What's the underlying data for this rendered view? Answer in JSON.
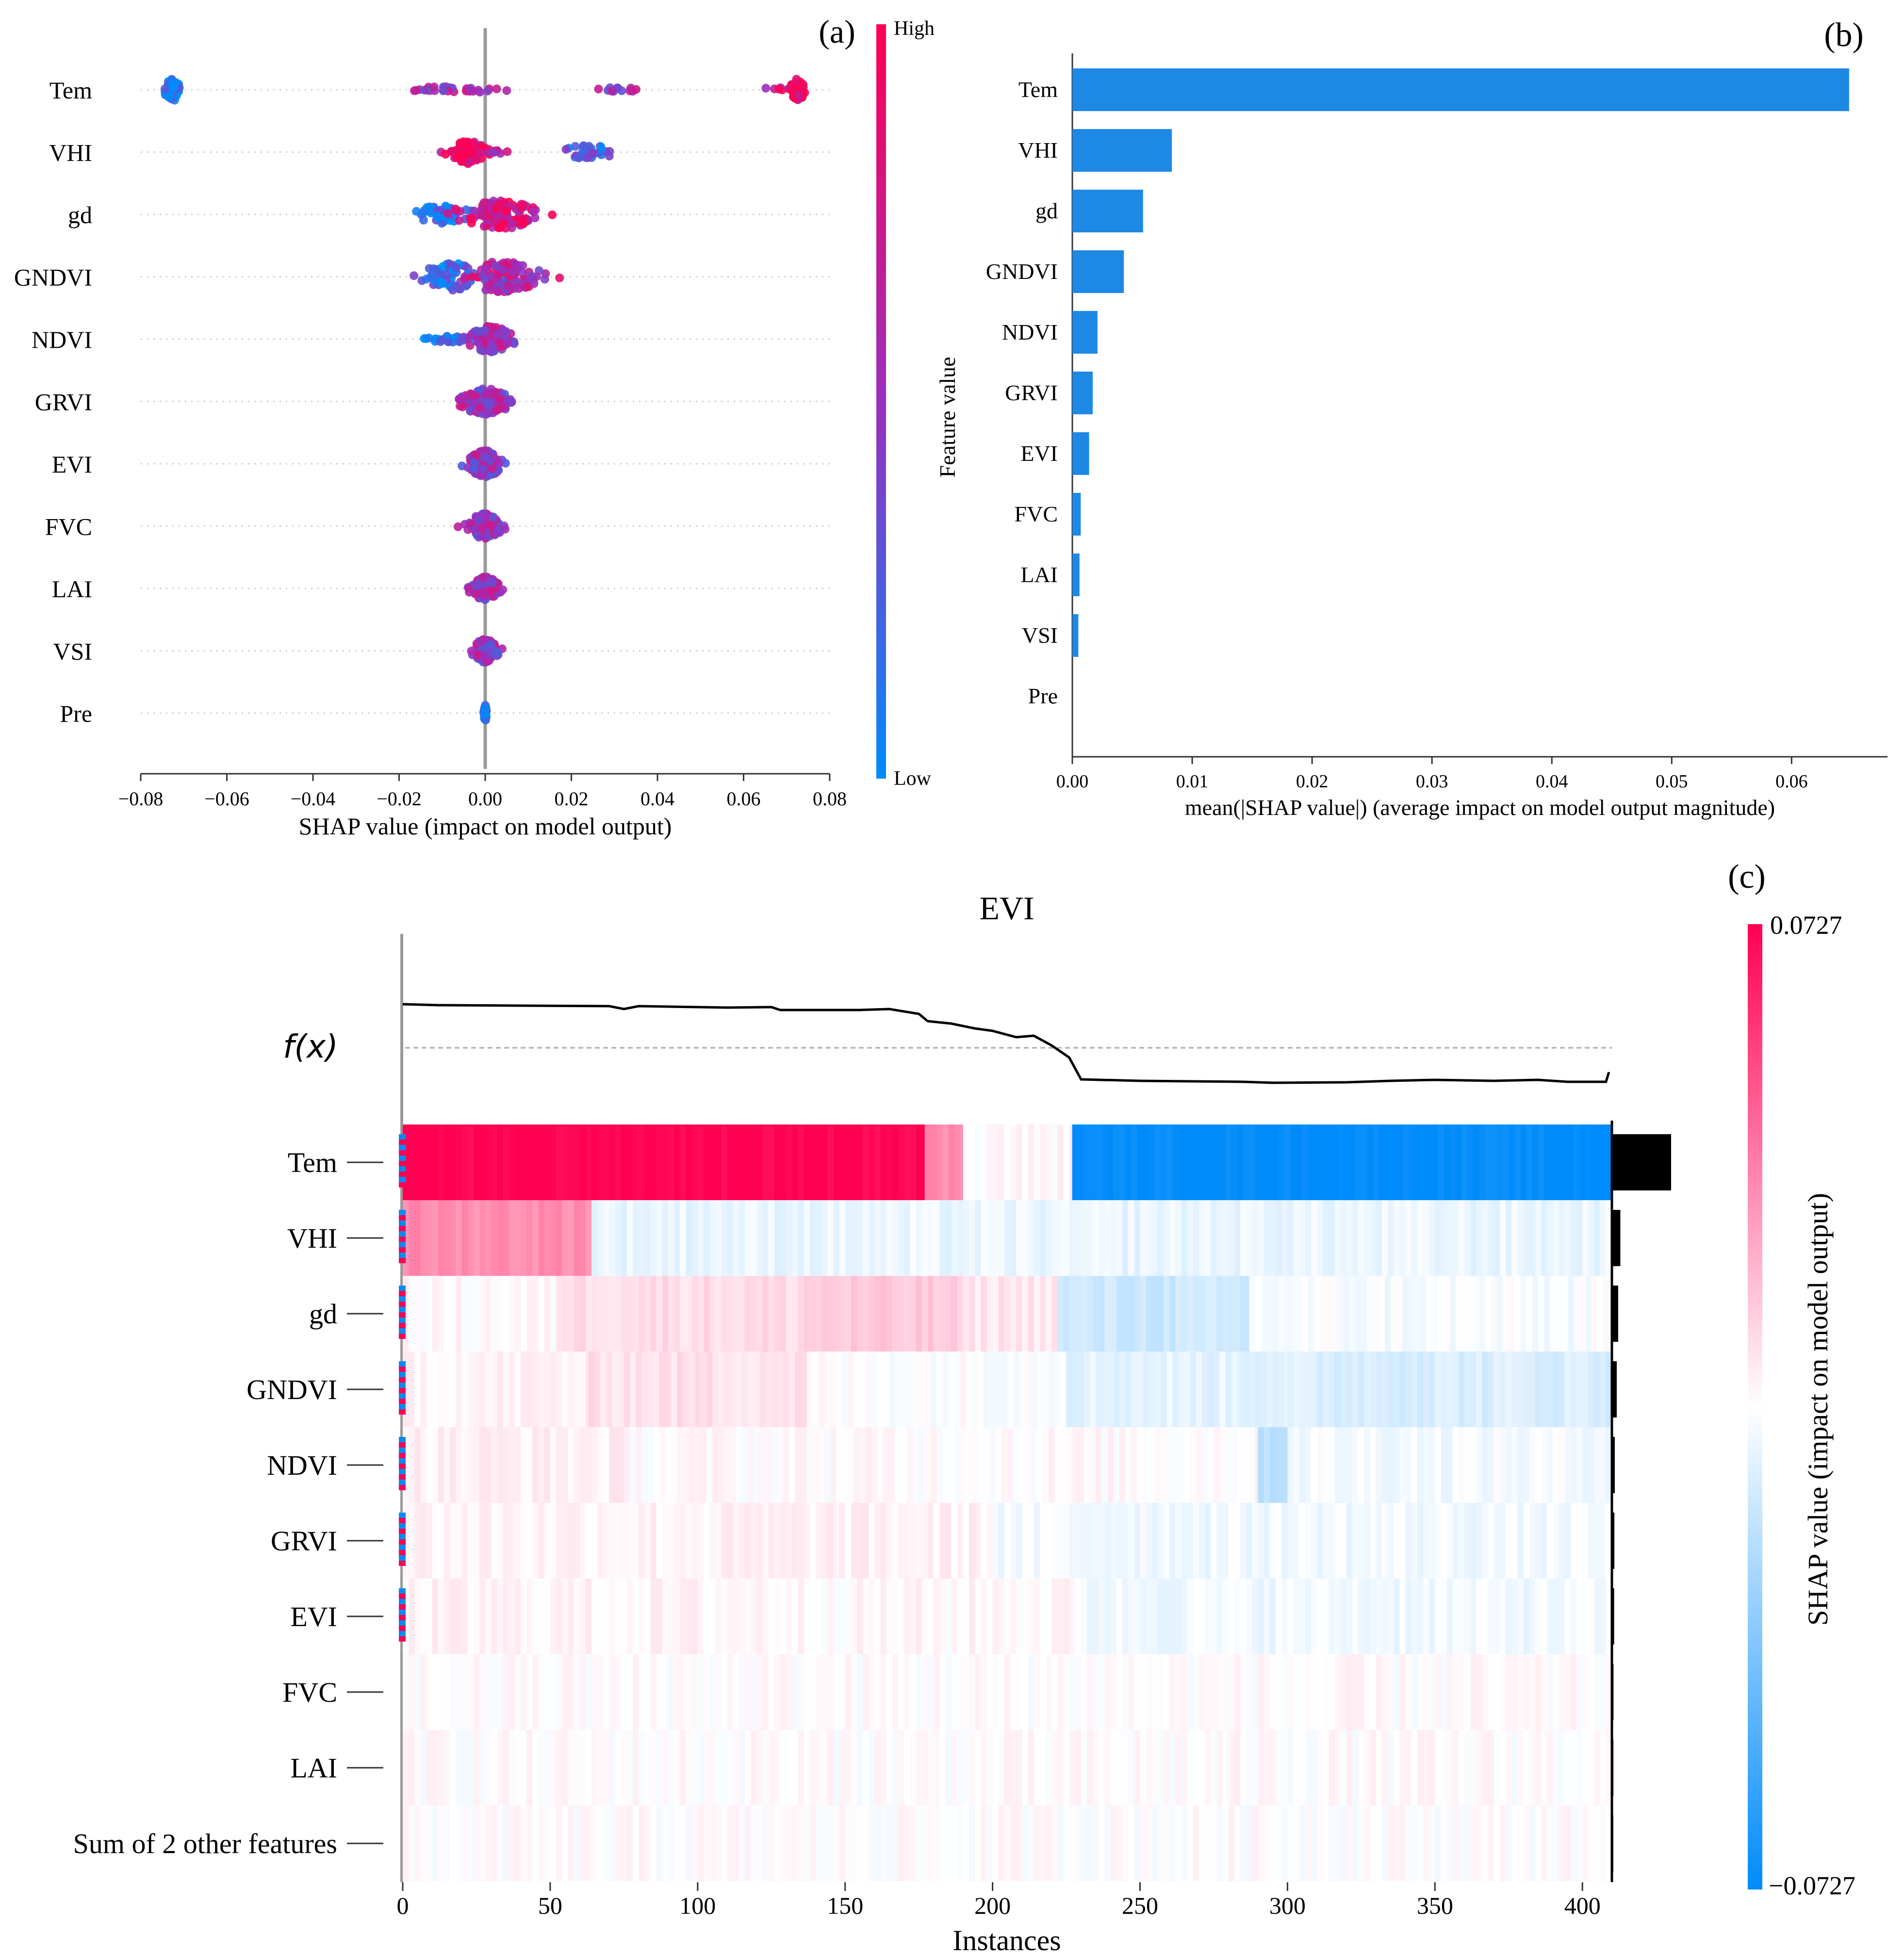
{
  "panels": {
    "a": {
      "panel_label": "(a)",
      "colorbar": {
        "high_label": "High",
        "low_label": "Low"
      }
    },
    "b": {
      "panel_label": "(b)"
    },
    "c": {
      "panel_label": "(c)",
      "fx_label": "f(x)"
    }
  },
  "colors": {
    "shap_red": "#ff0052",
    "shap_blue": "#008bfb",
    "shap_purple": "#9a2fbe",
    "bar_blue": "#1e88e5",
    "importance_bar": "#000000"
  },
  "chart_data": [
    {
      "id": "a",
      "type": "scatter",
      "subtype": "shap_beeswarm",
      "xlabel": "SHAP value (impact on model output)",
      "ylabel": "",
      "xlim": [
        -0.08,
        0.08
      ],
      "xticks": [
        -0.08,
        -0.06,
        -0.04,
        -0.02,
        0.0,
        0.02,
        0.04,
        0.06,
        0.08
      ],
      "xtick_labels": [
        "−0.08",
        "−0.06",
        "−0.04",
        "−0.02",
        "0.00",
        "0.02",
        "0.04",
        "0.06",
        "0.08"
      ],
      "features": [
        "Tem",
        "VHI",
        "gd",
        "GNDVI",
        "NDVI",
        "GRVI",
        "EVI",
        "FVC",
        "LAI",
        "VSI",
        "Pre"
      ],
      "colorbar": {
        "high": "High",
        "low": "Low"
      },
      "distributions": [
        {
          "feature": "Tem",
          "clusters": [
            {
              "center": -0.0725,
              "spread": 0.0015,
              "n": 55,
              "hue": 0.03,
              "height": 0.7
            },
            {
              "center": -0.009,
              "spread": 0.011,
              "n": 30,
              "hue": 0.55,
              "height": 0.2
            },
            {
              "center": 0.031,
              "spread": 0.0045,
              "n": 12,
              "hue": 0.55,
              "height": 0.15
            },
            {
              "center": 0.068,
              "spread": 0.004,
              "n": 6,
              "hue": 0.75,
              "height": 0.15
            },
            {
              "center": 0.0725,
              "spread": 0.0015,
              "n": 55,
              "hue": 0.97,
              "height": 0.7
            }
          ]
        },
        {
          "feature": "VHI",
          "clusters": [
            {
              "center": -0.004,
              "spread": 0.003,
              "n": 95,
              "hue": 0.92,
              "height": 0.75
            },
            {
              "center": 0.003,
              "spread": 0.002,
              "n": 8,
              "hue": 0.6,
              "height": 0.1
            },
            {
              "center": 0.024,
              "spread": 0.005,
              "n": 28,
              "hue": 0.25,
              "height": 0.45
            }
          ]
        },
        {
          "feature": "gd",
          "clusters": [
            {
              "center": -0.01,
              "spread": 0.005,
              "n": 45,
              "hue": 0.08,
              "height": 0.6
            },
            {
              "center": 0.004,
              "spread": 0.008,
              "n": 120,
              "hue": 0.8,
              "height": 0.9
            }
          ]
        },
        {
          "feature": "GNDVI",
          "clusters": [
            {
              "center": -0.008,
              "spread": 0.005,
              "n": 60,
              "hue": 0.2,
              "height": 0.9
            },
            {
              "center": 0.004,
              "spread": 0.007,
              "n": 110,
              "hue": 0.6,
              "height": 1.0
            }
          ]
        },
        {
          "feature": "NDVI",
          "clusters": [
            {
              "center": -0.008,
              "spread": 0.006,
              "n": 25,
              "hue": 0.05,
              "height": 0.2
            },
            {
              "center": 0.001,
              "spread": 0.004,
              "n": 130,
              "hue": 0.55,
              "height": 0.85
            }
          ]
        },
        {
          "feature": "GRVI",
          "clusters": [
            {
              "center": 0.0,
              "spread": 0.0045,
              "n": 150,
              "hue": 0.5,
              "height": 0.85
            }
          ]
        },
        {
          "feature": "EVI",
          "clusters": [
            {
              "center": 0.0,
              "spread": 0.003,
              "n": 140,
              "hue": 0.5,
              "height": 0.85
            }
          ]
        },
        {
          "feature": "FVC",
          "clusters": [
            {
              "center": 0.0,
              "spread": 0.0028,
              "n": 110,
              "hue": 0.5,
              "height": 0.85
            }
          ]
        },
        {
          "feature": "LAI",
          "clusters": [
            {
              "center": 0.0,
              "spread": 0.0025,
              "n": 110,
              "hue": 0.5,
              "height": 0.75
            }
          ]
        },
        {
          "feature": "VSI",
          "clusters": [
            {
              "center": 0.0,
              "spread": 0.0022,
              "n": 105,
              "hue": 0.5,
              "height": 0.75
            }
          ]
        },
        {
          "feature": "Pre",
          "clusters": [
            {
              "center": 0.0,
              "spread": 0.0002,
              "n": 65,
              "hue": 0.1,
              "height": 0.55
            }
          ]
        }
      ]
    },
    {
      "id": "b",
      "type": "bar",
      "orientation": "horizontal",
      "xlabel": "mean(|SHAP value|) (average impact on model output magnitude)",
      "ylabel": "Feature value",
      "xlim": [
        0,
        0.068
      ],
      "xticks": [
        0.0,
        0.01,
        0.02,
        0.03,
        0.04,
        0.05,
        0.06
      ],
      "xtick_labels": [
        "0.00",
        "0.01",
        "0.02",
        "0.03",
        "0.04",
        "0.05",
        "0.06"
      ],
      "categories": [
        "Tem",
        "VHI",
        "gd",
        "GNDVI",
        "NDVI",
        "GRVI",
        "EVI",
        "FVC",
        "LAI",
        "VSI",
        "Pre"
      ],
      "values": [
        0.0648,
        0.0083,
        0.0059,
        0.0043,
        0.0021,
        0.0017,
        0.0014,
        0.0007,
        0.0006,
        0.0005,
        0.0
      ]
    },
    {
      "id": "c",
      "type": "heatmap",
      "subtype": "shap_heatmap",
      "title": "EVI",
      "xlabel": "Instances",
      "ylabel": "SHAP value (impact on model output)",
      "xlim": [
        0,
        410
      ],
      "xticks": [
        0,
        50,
        100,
        150,
        200,
        250,
        300,
        350,
        400
      ],
      "xtick_labels": [
        "0",
        "50",
        "100",
        "150",
        "200",
        "250",
        "300",
        "350",
        "400"
      ],
      "n_instances": 410,
      "rows": [
        "Tem",
        "VHI",
        "gd",
        "GNDVI",
        "NDVI",
        "GRVI",
        "EVI",
        "FVC",
        "LAI",
        "Sum of 2 other features"
      ],
      "colorbar": {
        "max_label": "0.0727",
        "min_label": "−0.0727",
        "max": 0.0727,
        "min": -0.0727
      },
      "row_segments": [
        [
          [
            0,
            177,
            1.0
          ],
          [
            177,
            190,
            0.45
          ],
          [
            190,
            227,
            0.03
          ],
          [
            227,
            410,
            -1.0
          ]
        ],
        [
          [
            0,
            64,
            0.45
          ],
          [
            64,
            410,
            -0.08
          ]
        ],
        [
          [
            0,
            52,
            0.02
          ],
          [
            52,
            136,
            0.14
          ],
          [
            136,
            188,
            0.2
          ],
          [
            188,
            222,
            0.1
          ],
          [
            222,
            287,
            -0.2
          ],
          [
            287,
            410,
            -0.03
          ]
        ],
        [
          [
            0,
            63,
            0.05
          ],
          [
            63,
            137,
            0.12
          ],
          [
            137,
            225,
            0.0
          ],
          [
            225,
            300,
            -0.1
          ],
          [
            300,
            410,
            -0.14
          ]
        ],
        [
          [
            0,
            75,
            0.06
          ],
          [
            75,
            290,
            0.02
          ],
          [
            290,
            300,
            -0.25
          ],
          [
            300,
            410,
            -0.04
          ]
        ],
        [
          [
            0,
            200,
            0.05
          ],
          [
            200,
            410,
            -0.05
          ]
        ],
        [
          [
            0,
            130,
            0.04
          ],
          [
            130,
            230,
            0.03
          ],
          [
            230,
            410,
            -0.05
          ]
        ],
        [
          [
            0,
            410,
            0.01
          ]
        ],
        [
          [
            0,
            410,
            0.01
          ]
        ],
        [
          [
            0,
            410,
            0.005
          ]
        ]
      ],
      "row_importance": [
        0.0648,
        0.0083,
        0.0059,
        0.0043,
        0.0021,
        0.0017,
        0.0014,
        0.0007,
        0.0006,
        0.0005
      ],
      "fx": {
        "baseline": 0.0,
        "points": [
          [
            0,
            0.9
          ],
          [
            12,
            0.88
          ],
          [
            40,
            0.87
          ],
          [
            70,
            0.86
          ],
          [
            75,
            0.8
          ],
          [
            80,
            0.86
          ],
          [
            110,
            0.83
          ],
          [
            125,
            0.84
          ],
          [
            128,
            0.78
          ],
          [
            155,
            0.78
          ],
          [
            165,
            0.8
          ],
          [
            175,
            0.7
          ],
          [
            178,
            0.55
          ],
          [
            186,
            0.5
          ],
          [
            194,
            0.4
          ],
          [
            200,
            0.35
          ],
          [
            208,
            0.22
          ],
          [
            214,
            0.25
          ],
          [
            220,
            0.05
          ],
          [
            226,
            -0.2
          ],
          [
            230,
            -0.65
          ],
          [
            250,
            -0.68
          ],
          [
            285,
            -0.7
          ],
          [
            295,
            -0.72
          ],
          [
            320,
            -0.71
          ],
          [
            335,
            -0.68
          ],
          [
            350,
            -0.66
          ],
          [
            370,
            -0.68
          ],
          [
            385,
            -0.66
          ],
          [
            395,
            -0.7
          ],
          [
            408,
            -0.7
          ],
          [
            409,
            -0.5
          ]
        ]
      }
    }
  ]
}
